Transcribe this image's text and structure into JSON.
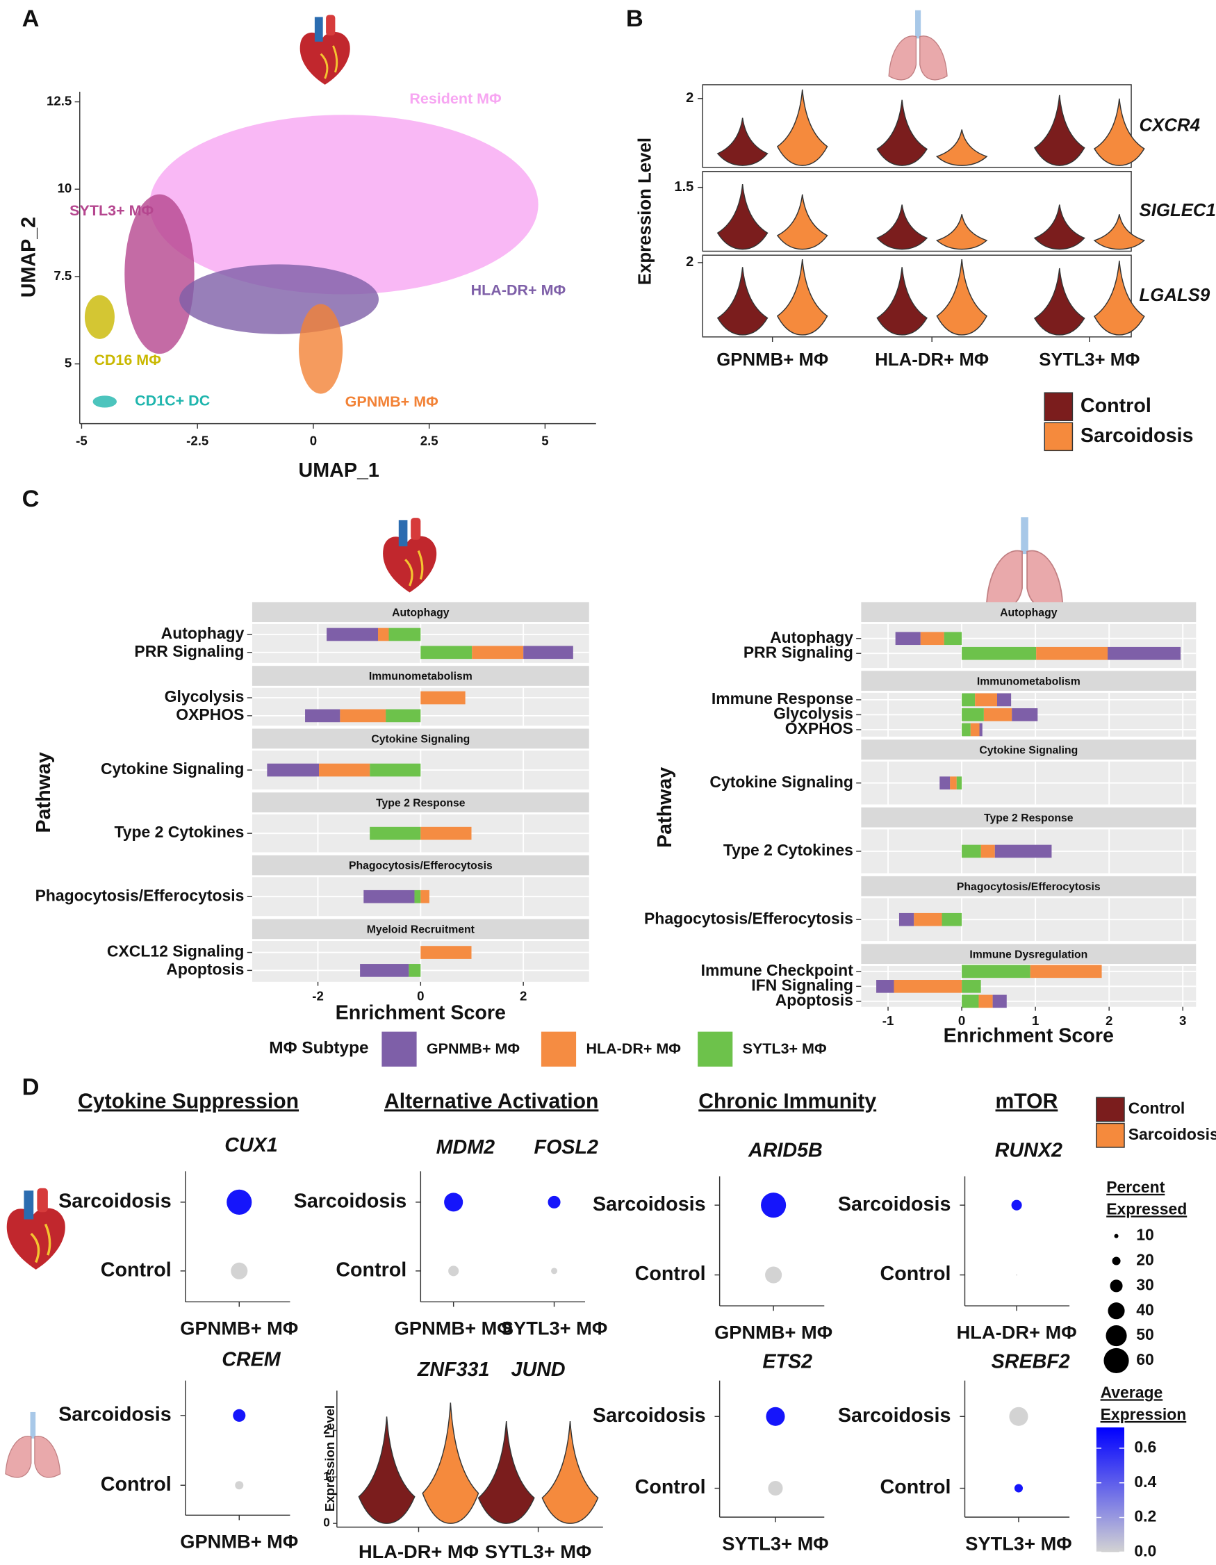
{
  "panel_labels": [
    "A",
    "B",
    "C",
    "D"
  ],
  "chart_data": [
    {
      "type": "scatter",
      "xlabel": "UMAP_1",
      "ylabel": "UMAP_2",
      "xlim": [
        -5.04,
        6.1
      ],
      "ylim": [
        3.29,
        12.79
      ],
      "xticks": [
        -5,
        -2.5,
        0,
        2.5,
        5
      ],
      "yticks": [
        5,
        7.5,
        10,
        12.5
      ],
      "clusters": [
        {
          "name": "Resident MΦ",
          "color": "#f7a6f2",
          "x": 0.66,
          "y": 9.56
        },
        {
          "name": "SYTL3+ MΦ",
          "color": "#b5468f",
          "x": -3.32,
          "y": 7.57
        },
        {
          "name": "HLA-DR+ MΦ",
          "color": "#7e5fa8",
          "x": -0.74,
          "y": 6.85
        },
        {
          "name": "CD16 MΦ",
          "color": "#c9b800",
          "x": -4.61,
          "y": 6.34
        },
        {
          "name": "CD1C+ DC",
          "color": "#1fb5ad",
          "x": -4.5,
          "y": 3.92
        },
        {
          "name": "GPNMB+ MΦ",
          "color": "#f28236",
          "x": 0.16,
          "y": 5.43
        }
      ]
    },
    {
      "type": "violin",
      "ylabel": "Expression Level",
      "categories": [
        "GPNMB+ MΦ",
        "HLA-DR+ MΦ",
        "SYTL3+ MΦ"
      ],
      "series": [
        {
          "name": "Control",
          "color": "#7b1d1d"
        },
        {
          "name": "Sarcoidosis",
          "color": "#f58a3d"
        }
      ],
      "genes": [
        {
          "name": "CXCR4",
          "ylim": [
            1,
            2.2
          ],
          "yticks": [
            2
          ],
          "values": [
            [
              1.72,
              1.98,
              2.05
            ],
            [
              2.13,
              1.55,
              2.0
            ]
          ]
        },
        {
          "name": "SIGLEC1",
          "ylim": [
            0.5,
            1.75
          ],
          "yticks": [
            1.5
          ],
          "values": [
            [
              1.55,
              1.23,
              1.23
            ],
            [
              1.39,
              1.08,
              1.08
            ]
          ]
        },
        {
          "name": "LGALS9",
          "ylim": [
            0,
            2.2
          ],
          "yticks": [
            2
          ],
          "values": [
            [
              1.88,
              1.88,
              1.85
            ],
            [
              2.09,
              2.09,
              2.05
            ]
          ]
        }
      ]
    },
    {
      "type": "stacked_barh",
      "xlabel": "Enrichment Score",
      "ylabel": "Pathway",
      "legend_title": "MΦ Subtype",
      "xlim": [
        -3.28,
        3.28
      ],
      "xticks": [
        -2,
        0,
        2
      ],
      "series": [
        {
          "name": "GPNMB+ MΦ",
          "color": "#7e5fa8"
        },
        {
          "name": "HLA-DR+ MΦ",
          "color": "#f58c42"
        },
        {
          "name": "SYTL3+ MΦ",
          "color": "#6dc24b"
        }
      ],
      "facets": [
        {
          "title": "Autophagy",
          "pathways": [
            {
              "name": "Autophagy",
              "values": [
                -1.0,
                -0.21,
                -0.62
              ]
            },
            {
              "name": "PRR Signaling",
              "values": [
                0.97,
                1.0,
                1.0
              ]
            }
          ]
        },
        {
          "title": "Immunometabolism",
          "pathways": [
            {
              "name": "Glycolysis",
              "values": [
                0,
                0.87,
                0
              ]
            },
            {
              "name": "OXPHOS",
              "values": [
                -0.68,
                -0.89,
                -0.68
              ]
            }
          ]
        },
        {
          "title": "Cytokine Signaling",
          "pathways": [
            {
              "name": "Cytokine Signaling",
              "values": [
                -1.01,
                -0.99,
                -0.99
              ]
            }
          ]
        },
        {
          "title": "Type 2 Response",
          "pathways": [
            {
              "name": "Type 2 Cytokines",
              "values": [
                0,
                0.99,
                -0.99
              ]
            }
          ]
        },
        {
          "title": "Phagocytosis/Efferocytosis",
          "pathways": [
            {
              "name": "Phagocytosis/Efferocytosis",
              "values": [
                -0.99,
                0.17,
                -0.12
              ]
            }
          ]
        },
        {
          "title": "Myeloid Recruitment",
          "pathways": [
            {
              "name": "CXCL12 Signaling",
              "values": [
                0,
                0.99,
                0
              ]
            },
            {
              "name": "Apoptosis",
              "values": [
                -0.95,
                0,
                -0.23
              ]
            }
          ]
        }
      ]
    },
    {
      "type": "stacked_barh",
      "xlabel": "Enrichment Score",
      "ylabel": "Pathway",
      "xlim": [
        -1.365,
        3.18
      ],
      "xticks": [
        -1,
        0,
        1,
        2,
        3
      ],
      "series": [
        {
          "color": "#7e5fa8"
        },
        {
          "color": "#f58c42"
        },
        {
          "color": "#6dc24b"
        }
      ],
      "facets": [
        {
          "title": "Autophagy",
          "pathways": [
            {
              "name": "Autophagy",
              "values": [
                -0.34,
                -0.32,
                -0.24
              ]
            },
            {
              "name": "PRR Signaling",
              "values": [
                0.99,
                0.97,
                1.01
              ]
            }
          ]
        },
        {
          "title": "Immunometabolism",
          "pathways": [
            {
              "name": "Immune Response",
              "values": [
                0.19,
                0.3,
                0.18
              ]
            },
            {
              "name": "Glycolysis",
              "values": [
                0.35,
                0.38,
                0.3
              ]
            },
            {
              "name": "OXPHOS",
              "values": [
                0.04,
                0.12,
                0.12
              ]
            }
          ]
        },
        {
          "title": "Cytokine Signaling",
          "pathways": [
            {
              "name": "Cytokine Signaling",
              "values": [
                -0.14,
                -0.09,
                -0.07
              ]
            }
          ]
        },
        {
          "title": "Type 2 Response",
          "pathways": [
            {
              "name": "Type 2 Cytokines",
              "values": [
                0.77,
                0.19,
                0.26
              ]
            }
          ]
        },
        {
          "title": "Phagocytosis/Efferocytosis",
          "pathways": [
            {
              "name": "Phagocytosis/Efferocytosis",
              "values": [
                -0.2,
                -0.38,
                -0.27
              ]
            }
          ]
        },
        {
          "title": "Immune Dysregulation",
          "pathways": [
            {
              "name": "Immune Checkpoint",
              "values": [
                0,
                0.97,
                0.93
              ]
            },
            {
              "name": "IFN Signaling",
              "values": [
                -0.24,
                -0.92,
                0.26
              ]
            },
            {
              "name": "Apoptosis",
              "values": [
                0.19,
                0.19,
                0.23
              ]
            }
          ]
        }
      ]
    },
    {
      "type": "dot",
      "groups": [
        "Cytokine Suppression",
        "Alternative Activation",
        "Chronic Immunity",
        "mTOR"
      ],
      "rows": [
        "Sarcoidosis",
        "Control"
      ],
      "genes": [
        {
          "name": "CUX1",
          "category": "GPNMB+ MΦ",
          "pct": [
            60,
            40
          ],
          "avg": [
            0.65,
            0
          ]
        },
        {
          "name": "MDM2",
          "category": "GPNMB+ MΦ",
          "pct": [
            45,
            25
          ],
          "avg": [
            0.65,
            0
          ]
        },
        {
          "name": "FOSL2",
          "category": "SYTL3+ MΦ",
          "pct": [
            30,
            15
          ],
          "avg": [
            0.65,
            0
          ]
        },
        {
          "name": "ARID5B",
          "category": "GPNMB+ MΦ",
          "pct": [
            60,
            40
          ],
          "avg": [
            0.65,
            0
          ]
        },
        {
          "name": "RUNX2",
          "category": "HLA-DR+ MΦ",
          "pct": [
            25,
            3
          ],
          "avg": [
            0.65,
            0
          ]
        },
        {
          "name": "CREM",
          "category": "GPNMB+ MΦ",
          "pct": [
            30,
            20
          ],
          "avg": [
            0.65,
            0
          ]
        },
        {
          "name": "ETS2",
          "category": "SYTL3+ MΦ",
          "pct": [
            45,
            35
          ],
          "avg": [
            0.65,
            0
          ]
        },
        {
          "name": "SREBF2",
          "category": "SYTL3+ MΦ",
          "pct": [
            45,
            20
          ],
          "avg": [
            0,
            0.65
          ]
        }
      ],
      "size_title": [
        "Percent",
        "Expressed"
      ],
      "size_values": [
        10,
        20,
        30,
        40,
        50,
        60
      ],
      "color_title": [
        "Average",
        "Expression"
      ],
      "colorlim": [
        0,
        0.72
      ],
      "colorticks": [
        {
          "value": 0,
          "label": "0.0"
        },
        0.2,
        0.4,
        0.6
      ],
      "colors": [
        "#d3d3d3",
        "#0000ff"
      ]
    },
    {
      "type": "violin",
      "ylabel": "Expression Level",
      "genes": [
        "ZNF331",
        "JUND"
      ],
      "categories": [
        "HLA-DR+ MΦ",
        "SYTL3+ MΦ"
      ],
      "ylim": [
        -0.08,
        2.86
      ],
      "yticks": [
        0,
        1,
        2
      ],
      "series": [
        {
          "name": "Control",
          "color": "#7b1d1d",
          "values": [
            2.3,
            2.2
          ]
        },
        {
          "name": "Sarcoidosis",
          "color": "#f58a3d",
          "values": [
            2.6,
            2.2
          ]
        }
      ]
    }
  ]
}
